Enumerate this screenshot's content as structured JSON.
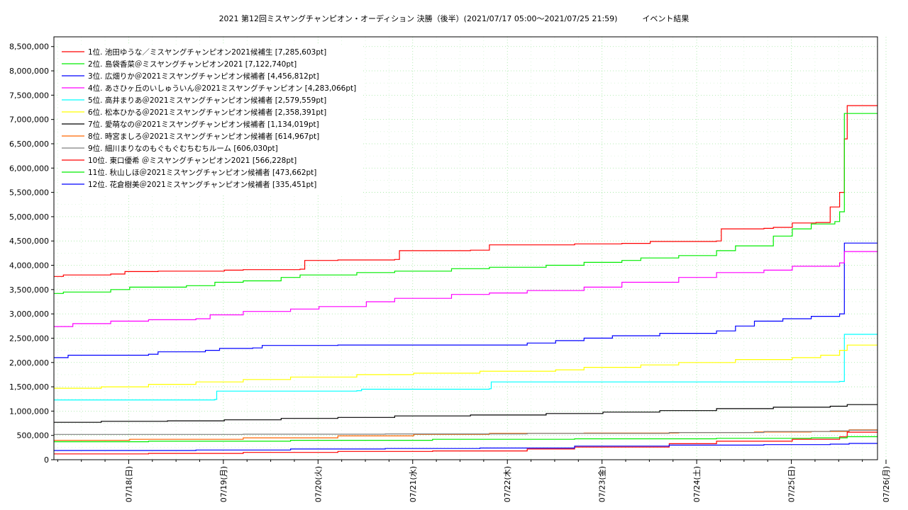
{
  "chart_data": {
    "type": "line",
    "title": "2021 第12回ミスヤングチャンピオン・オーディション 決勝（後半）(2021/07/17 05:00〜2021/07/25 21:59)",
    "title_suffix": "イベント結果",
    "xlabel": "",
    "ylabel": "",
    "x_ticks": [
      "07/18(日)",
      "07/19(月)",
      "07/20(火)",
      "07/21(水)",
      "07/22(木)",
      "07/23(金)",
      "07/24(土)",
      "07/25(日)",
      "07/26(月)"
    ],
    "y_ticks": [
      "0",
      "500,000",
      "1,000,000",
      "1,500,000",
      "2,000,000",
      "2,500,000",
      "3,000,000",
      "3,500,000",
      "4,000,000",
      "4,500,000",
      "5,000,000",
      "5,500,000",
      "6,000,000",
      "6,500,000",
      "7,000,000",
      "7,500,000",
      "8,000,000",
      "8,500,000"
    ],
    "ylim": [
      0,
      8700000
    ],
    "xlim_days": [
      0,
      8.7
    ],
    "grid": true,
    "legend_position": "top-left",
    "series": [
      {
        "name": "1位. 池田ゆうな／ミスヤングチャンピオン2021候補生 [7,285,603pt]",
        "color": "#ff0000",
        "points": [
          [
            0,
            3770000
          ],
          [
            0.1,
            3800000
          ],
          [
            0.6,
            3820000
          ],
          [
            0.75,
            3870000
          ],
          [
            1.1,
            3880000
          ],
          [
            1.8,
            3900000
          ],
          [
            2.0,
            3910000
          ],
          [
            2.6,
            3920000
          ],
          [
            2.65,
            4100000
          ],
          [
            3.0,
            4110000
          ],
          [
            3.6,
            4120000
          ],
          [
            3.65,
            4300000
          ],
          [
            4.4,
            4310000
          ],
          [
            4.6,
            4420000
          ],
          [
            5.5,
            4440000
          ],
          [
            6.0,
            4450000
          ],
          [
            6.3,
            4490000
          ],
          [
            7.0,
            4500000
          ],
          [
            7.05,
            4750000
          ],
          [
            7.5,
            4760000
          ],
          [
            7.6,
            4780000
          ],
          [
            7.8,
            4870000
          ],
          [
            8.05,
            4880000
          ],
          [
            8.2,
            5200000
          ],
          [
            8.3,
            5500000
          ],
          [
            8.35,
            6600000
          ],
          [
            8.38,
            7285603
          ],
          [
            8.7,
            7285603
          ]
        ]
      },
      {
        "name": "2位. 島袋香菜＠ミスヤングチャンピオン2021 [7,122,740pt]",
        "color": "#00ee00",
        "points": [
          [
            0,
            3420000
          ],
          [
            0.1,
            3450000
          ],
          [
            0.6,
            3500000
          ],
          [
            0.8,
            3550000
          ],
          [
            1.4,
            3580000
          ],
          [
            1.7,
            3650000
          ],
          [
            2.0,
            3680000
          ],
          [
            2.4,
            3750000
          ],
          [
            2.6,
            3800000
          ],
          [
            3.2,
            3850000
          ],
          [
            3.6,
            3880000
          ],
          [
            4.2,
            3930000
          ],
          [
            4.6,
            3960000
          ],
          [
            5.2,
            4000000
          ],
          [
            5.6,
            4060000
          ],
          [
            6.0,
            4100000
          ],
          [
            6.2,
            4150000
          ],
          [
            6.6,
            4200000
          ],
          [
            7.0,
            4300000
          ],
          [
            7.2,
            4400000
          ],
          [
            7.5,
            4400000
          ],
          [
            7.6,
            4600000
          ],
          [
            7.8,
            4750000
          ],
          [
            8.0,
            4850000
          ],
          [
            8.25,
            4900000
          ],
          [
            8.3,
            5100000
          ],
          [
            8.35,
            7122740
          ],
          [
            8.7,
            7122740
          ]
        ]
      },
      {
        "name": "3位. 広畑りか＠2021ミスヤングチャンピオン候補者 [4,456,812pt]",
        "color": "#0000ff",
        "points": [
          [
            0,
            2100000
          ],
          [
            0.15,
            2150000
          ],
          [
            1.0,
            2170000
          ],
          [
            1.1,
            2220000
          ],
          [
            1.6,
            2250000
          ],
          [
            1.75,
            2290000
          ],
          [
            2.1,
            2300000
          ],
          [
            2.2,
            2350000
          ],
          [
            3.0,
            2360000
          ],
          [
            4.5,
            2360000
          ],
          [
            5.0,
            2400000
          ],
          [
            5.3,
            2450000
          ],
          [
            5.6,
            2500000
          ],
          [
            5.9,
            2550000
          ],
          [
            6.4,
            2600000
          ],
          [
            7.0,
            2650000
          ],
          [
            7.2,
            2750000
          ],
          [
            7.4,
            2850000
          ],
          [
            7.7,
            2900000
          ],
          [
            8.0,
            2950000
          ],
          [
            8.3,
            3000000
          ],
          [
            8.35,
            4456812
          ],
          [
            8.7,
            4456812
          ]
        ]
      },
      {
        "name": "4位. あさひヶ丘のいしゅういん＠2021ミスヤングチャンピオン [4,283,066pt]",
        "color": "#ff00ff",
        "points": [
          [
            0,
            2740000
          ],
          [
            0.2,
            2800000
          ],
          [
            0.6,
            2850000
          ],
          [
            1.0,
            2880000
          ],
          [
            1.5,
            2900000
          ],
          [
            1.65,
            2980000
          ],
          [
            2.0,
            3050000
          ],
          [
            2.5,
            3100000
          ],
          [
            2.8,
            3150000
          ],
          [
            3.3,
            3250000
          ],
          [
            3.6,
            3320000
          ],
          [
            4.2,
            3400000
          ],
          [
            4.6,
            3430000
          ],
          [
            5.0,
            3480000
          ],
          [
            5.6,
            3550000
          ],
          [
            6.0,
            3650000
          ],
          [
            6.6,
            3750000
          ],
          [
            7.0,
            3850000
          ],
          [
            7.5,
            3900000
          ],
          [
            7.8,
            3980000
          ],
          [
            8.3,
            4050000
          ],
          [
            8.35,
            4283066
          ],
          [
            8.7,
            4283066
          ]
        ]
      },
      {
        "name": "5位. 高井まりあ＠2021ミスヤングチャンピオン候補者 [2,579,559pt]",
        "color": "#00ffff",
        "points": [
          [
            0,
            1230000
          ],
          [
            1.7,
            1240000
          ],
          [
            1.72,
            1410000
          ],
          [
            3.2,
            1420000
          ],
          [
            3.25,
            1450000
          ],
          [
            4.6,
            1460000
          ],
          [
            4.62,
            1600000
          ],
          [
            8.3,
            1610000
          ],
          [
            8.35,
            2579559
          ],
          [
            8.7,
            2579559
          ]
        ]
      },
      {
        "name": "6位. 松本ひかる＠2021ミスヤングチャンピオン候補者 [2,358,391pt]",
        "color": "#ffff00",
        "points": [
          [
            0,
            1470000
          ],
          [
            0.5,
            1500000
          ],
          [
            1.0,
            1550000
          ],
          [
            1.5,
            1600000
          ],
          [
            2.0,
            1650000
          ],
          [
            2.5,
            1700000
          ],
          [
            3.2,
            1750000
          ],
          [
            3.8,
            1780000
          ],
          [
            4.5,
            1820000
          ],
          [
            5.3,
            1850000
          ],
          [
            5.6,
            1900000
          ],
          [
            6.2,
            1950000
          ],
          [
            6.6,
            2000000
          ],
          [
            7.2,
            2060000
          ],
          [
            7.8,
            2100000
          ],
          [
            8.1,
            2150000
          ],
          [
            8.3,
            2250000
          ],
          [
            8.38,
            2358391
          ],
          [
            8.7,
            2358391
          ]
        ]
      },
      {
        "name": "7位. 愛萌なの＠2021ミスヤングチャンピオン候補者 [1,134,019pt]",
        "color": "#000000",
        "points": [
          [
            0,
            770000
          ],
          [
            0.5,
            790000
          ],
          [
            1.2,
            800000
          ],
          [
            1.8,
            820000
          ],
          [
            2.4,
            850000
          ],
          [
            3.0,
            870000
          ],
          [
            3.6,
            900000
          ],
          [
            4.4,
            920000
          ],
          [
            5.2,
            950000
          ],
          [
            5.8,
            980000
          ],
          [
            6.4,
            1010000
          ],
          [
            7.0,
            1050000
          ],
          [
            7.6,
            1080000
          ],
          [
            8.2,
            1100000
          ],
          [
            8.38,
            1134019
          ],
          [
            8.7,
            1134019
          ]
        ]
      },
      {
        "name": "8位. 時宮ましろ＠2021ミスヤングチャンピオン候補者 [614,967pt]",
        "color": "#ff6600",
        "points": [
          [
            0,
            400000
          ],
          [
            0.8,
            420000
          ],
          [
            2.0,
            450000
          ],
          [
            3.0,
            490000
          ],
          [
            3.8,
            520000
          ],
          [
            4.6,
            540000
          ],
          [
            5.6,
            550000
          ],
          [
            6.6,
            560000
          ],
          [
            7.4,
            570000
          ],
          [
            8.0,
            580000
          ],
          [
            8.4,
            614967
          ],
          [
            8.7,
            614967
          ]
        ]
      },
      {
        "name": "9位. 細川まりなのもぐもぐむちむちルーム [606,030pt]",
        "color": "#808080",
        "points": [
          [
            0,
            520000
          ],
          [
            2.0,
            525000
          ],
          [
            3.5,
            530000
          ],
          [
            5.0,
            540000
          ],
          [
            6.5,
            560000
          ],
          [
            7.5,
            580000
          ],
          [
            8.2,
            595000
          ],
          [
            8.4,
            606030
          ],
          [
            8.7,
            606030
          ]
        ]
      },
      {
        "name": "10位. 東口優希 ＠ミスヤングチャンピオン2021 [566,228pt]",
        "color": "#ff0000",
        "points": [
          [
            0,
            120000
          ],
          [
            1.0,
            130000
          ],
          [
            2.0,
            150000
          ],
          [
            3.0,
            170000
          ],
          [
            4.0,
            180000
          ],
          [
            5.0,
            220000
          ],
          [
            5.5,
            260000
          ],
          [
            6.5,
            330000
          ],
          [
            7.0,
            380000
          ],
          [
            7.8,
            420000
          ],
          [
            8.3,
            470000
          ],
          [
            8.38,
            566228
          ],
          [
            8.7,
            566228
          ]
        ]
      },
      {
        "name": "11位. 秋山しほ＠2021ミスヤングチャンピオン候補者 [473,662pt]",
        "color": "#00ee00",
        "points": [
          [
            0,
            370000
          ],
          [
            1.0,
            380000
          ],
          [
            2.5,
            400000
          ],
          [
            4.0,
            420000
          ],
          [
            5.5,
            430000
          ],
          [
            7.0,
            440000
          ],
          [
            8.0,
            450000
          ],
          [
            8.38,
            473662
          ],
          [
            8.7,
            473662
          ]
        ]
      },
      {
        "name": "12位. 花倉樹美＠2021ミスヤングチャンピオン候補者 [335,451pt]",
        "color": "#0000ff",
        "points": [
          [
            0,
            190000
          ],
          [
            1.5,
            200000
          ],
          [
            2.5,
            220000
          ],
          [
            3.5,
            230000
          ],
          [
            4.5,
            240000
          ],
          [
            5.5,
            280000
          ],
          [
            6.5,
            300000
          ],
          [
            7.5,
            310000
          ],
          [
            8.2,
            320000
          ],
          [
            8.4,
            335451
          ],
          [
            8.7,
            335451
          ]
        ]
      }
    ]
  }
}
